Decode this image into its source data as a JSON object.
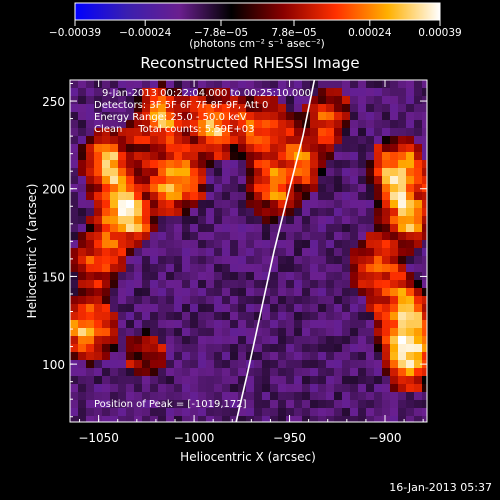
{
  "chart_data": {
    "type": "heatmap",
    "title": "Reconstructed RHESSI Image",
    "xlabel": "Heliocentric X (arcsec)",
    "ylabel": "Heliocentric Y (arcsec)",
    "xlim": [
      -1065,
      -878
    ],
    "ylim": [
      67,
      262
    ],
    "xticks": [
      -1050,
      -1000,
      -950,
      -900
    ],
    "xtick_labels": [
      "−1050",
      "−1000",
      "−950",
      "−900"
    ],
    "yticks": [
      100,
      150,
      200,
      250
    ],
    "ytick_labels": [
      "100",
      "150",
      "200",
      "250"
    ],
    "colorbar": {
      "range": [
        -0.00039,
        0.00039
      ],
      "ticks": [
        -0.00039,
        -0.00024,
        -7.8e-05,
        7.8e-05,
        0.00024,
        0.00039
      ],
      "tick_labels": [
        "−0.00039",
        "−0.00024",
        "−7.8e−05",
        "7.8e−05",
        "0.00024",
        "0.00039"
      ],
      "unit_label": "(photons cm⁻² s⁻¹ asec⁻²)",
      "colormap": [
        "#0000ff",
        "#3a1fb0",
        "#6a1f8f",
        "#000000",
        "#8a0000",
        "#ff3000",
        "#ffb000",
        "#ffffff"
      ]
    },
    "annotations": {
      "time": "9-Jan-2013 00:22:04.000 to 00:25:10.000",
      "detectors": "Detectors: 3F 5F 6F 7F 8F 9F, Att 0",
      "energy": "Energy Range: 25.0 - 50.0 keV",
      "clean": "Clean     Total counts: 5.59E+03",
      "peak": "Position of Peak = [-1019,172]"
    },
    "peak": {
      "x": -1019,
      "y": 172
    },
    "bright_sources": [
      {
        "x": -1036,
        "y": 186,
        "amp": 1.0
      },
      {
        "x": -1009,
        "y": 205,
        "amp": 0.85
      },
      {
        "x": -990,
        "y": 237,
        "amp": 0.78
      },
      {
        "x": -1045,
        "y": 215,
        "amp": 0.8
      },
      {
        "x": -1018,
        "y": 240,
        "amp": 0.7
      },
      {
        "x": -1055,
        "y": 120,
        "amp": 0.75
      },
      {
        "x": -1050,
        "y": 160,
        "amp": 0.55
      },
      {
        "x": -960,
        "y": 200,
        "amp": 0.55
      },
      {
        "x": -965,
        "y": 235,
        "amp": 0.6
      },
      {
        "x": -945,
        "y": 215,
        "amp": 0.55
      },
      {
        "x": -930,
        "y": 240,
        "amp": 0.45
      },
      {
        "x": -893,
        "y": 210,
        "amp": 0.85
      },
      {
        "x": -888,
        "y": 185,
        "amp": 0.75
      },
      {
        "x": -890,
        "y": 130,
        "amp": 0.8
      },
      {
        "x": -887,
        "y": 105,
        "amp": 0.95
      },
      {
        "x": -905,
        "y": 155,
        "amp": 0.55
      },
      {
        "x": -1025,
        "y": 105,
        "amp": 0.3
      }
    ],
    "limb_curve": [
      [
        -978,
        67
      ],
      [
        -972,
        95
      ],
      [
        -965,
        130
      ],
      [
        -958,
        165
      ],
      [
        -950,
        200
      ],
      [
        -943,
        230
      ],
      [
        -937,
        262
      ]
    ]
  },
  "footer": {
    "date": "16-Jan-2013 05:37"
  }
}
